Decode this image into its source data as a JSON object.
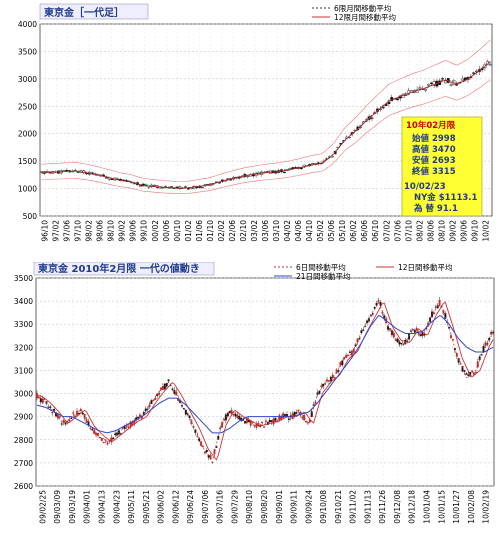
{
  "chart_data": [
    {
      "type": "candlestick",
      "title": "東京金［一代足］",
      "legend": [
        "6限月間移動平均",
        "12限月間移動平均"
      ],
      "legend_placement": "top-right",
      "grid": true,
      "ylim": [
        500,
        4000
      ],
      "y_ticks": [
        500,
        1000,
        1500,
        2000,
        2500,
        3000,
        3500,
        4000
      ],
      "x_ticks": [
        "96/10",
        "97/02",
        "97/06",
        "97/10",
        "98/02",
        "98/06",
        "98/10",
        "99/02",
        "99/06",
        "99/10",
        "00/02",
        "00/06",
        "00/10",
        "01/02",
        "01/06",
        "01/10",
        "02/02",
        "02/06",
        "02/10",
        "03/02",
        "03/06",
        "03/10",
        "04/02",
        "04/06",
        "04/10",
        "05/02",
        "05/06",
        "05/10",
        "06/02",
        "06/06",
        "06/10",
        "07/02",
        "07/06",
        "07/10",
        "08/02",
        "08/06",
        "08/10",
        "09/02",
        "09/06",
        "09/10",
        "10/02"
      ],
      "close_approx": [
        1290,
        1300,
        1310,
        1320,
        1290,
        1250,
        1200,
        1150,
        1120,
        1060,
        1040,
        1020,
        1010,
        1010,
        1040,
        1070,
        1130,
        1180,
        1230,
        1260,
        1290,
        1310,
        1340,
        1380,
        1430,
        1460,
        1620,
        1880,
        2050,
        2250,
        2430,
        2600,
        2680,
        2760,
        2820,
        2900,
        2980,
        2900,
        3000,
        3150,
        3315
      ],
      "info_box": {
        "head": "10年02月限",
        "lines": [
          "始値 2998",
          "高値 3470",
          "安値 2693",
          "終値 3315"
        ],
        "date": "10/02/23",
        "ny": "NY金 $1113.1",
        "fx": "為 替 91.1"
      }
    },
    {
      "type": "candlestick",
      "title": "東京金 2010年2月限 一代の値動き",
      "legend": [
        "6日間移動平均",
        "12日間移動平均",
        "21日間移動平均"
      ],
      "legend_placement": "top-right",
      "grid": true,
      "ylim": [
        2600,
        3500
      ],
      "y_ticks": [
        2600,
        2700,
        2800,
        2900,
        3000,
        3100,
        3200,
        3300,
        3400,
        3500
      ],
      "x_ticks": [
        "09/02/25",
        "09/03/09",
        "09/03/19",
        "09/04/01",
        "09/04/13",
        "09/04/23",
        "09/05/11",
        "09/05/21",
        "09/06/02",
        "09/06/12",
        "09/06/24",
        "09/07/06",
        "09/07/16",
        "09/07/29",
        "09/08/10",
        "09/08/20",
        "09/09/01",
        "09/09/11",
        "09/09/24",
        "09/10/08",
        "09/10/21",
        "09/11/02",
        "09/11/13",
        "09/11/26",
        "09/12/08",
        "09/12/18",
        "10/01/04",
        "10/01/15",
        "10/01/27",
        "10/02/08",
        "10/02/19"
      ],
      "close_path_approx": [
        2990,
        2960,
        2920,
        2870,
        2900,
        2930,
        2860,
        2820,
        2790,
        2820,
        2850,
        2880,
        2900,
        2960,
        3010,
        3050,
        2990,
        2920,
        2850,
        2760,
        2710,
        2860,
        2930,
        2900,
        2880,
        2860,
        2870,
        2880,
        2900,
        2900,
        2920,
        2870,
        3000,
        3050,
        3080,
        3150,
        3180,
        3260,
        3330,
        3400,
        3290,
        3230,
        3220,
        3280,
        3250,
        3340,
        3400,
        3280,
        3150,
        3070,
        3100,
        3200,
        3270
      ],
      "ma21_path_approx": [
        2950,
        2940,
        2920,
        2900,
        2900,
        2880,
        2860,
        2840,
        2830,
        2840,
        2860,
        2880,
        2900,
        2930,
        2960,
        2980,
        2980,
        2950,
        2910,
        2870,
        2830,
        2830,
        2850,
        2880,
        2900,
        2900,
        2900,
        2900,
        2900,
        2900,
        2910,
        2920,
        2960,
        3010,
        3060,
        3110,
        3160,
        3220,
        3290,
        3340,
        3310,
        3280,
        3260,
        3260,
        3270,
        3310,
        3340,
        3300,
        3240,
        3200,
        3180,
        3180,
        3200
      ]
    }
  ]
}
